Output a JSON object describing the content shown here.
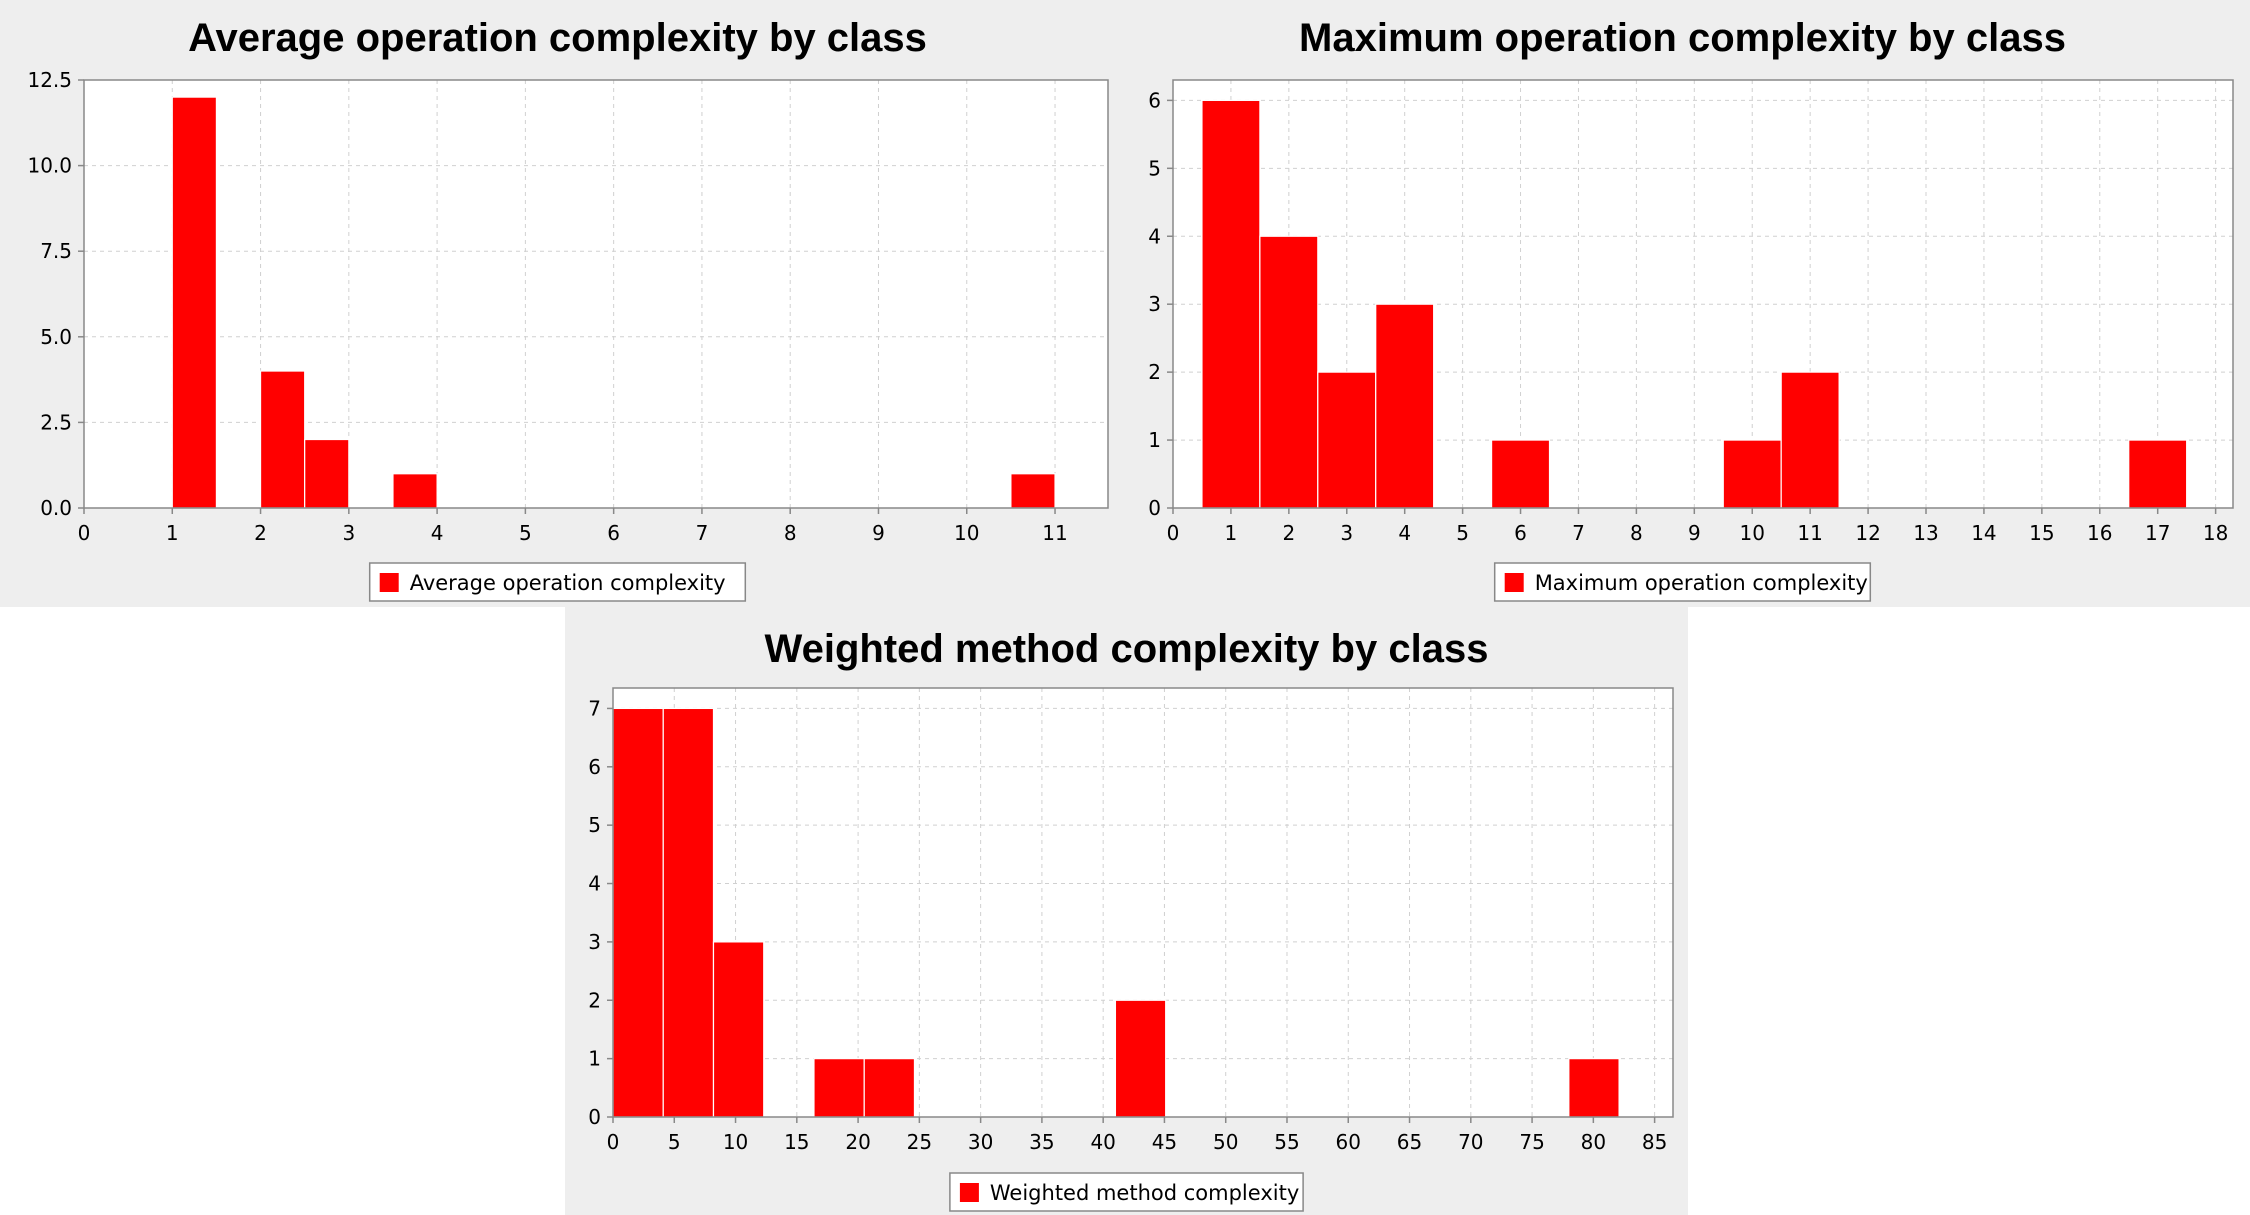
{
  "colors": {
    "bar": "#ff0000",
    "bar_edge": "#ffffff",
    "plot_bg": "#ffffff",
    "panel_bg": "#eeeeee",
    "grid": "#d0d0d0",
    "axis": "#888888"
  },
  "chart_data": [
    {
      "type": "bar",
      "title": "Average operation complexity by class",
      "legend": [
        "Average operation complexity"
      ],
      "legend_position": "bottom",
      "grid": true,
      "xlim": [
        0,
        11.6
      ],
      "ylim": [
        0,
        12.5
      ],
      "xticks": [
        0,
        1,
        2,
        3,
        4,
        5,
        6,
        7,
        8,
        9,
        10,
        11
      ],
      "yticks": [
        "0.0",
        "2.5",
        "5.0",
        "7.5",
        "10.0",
        "12.5"
      ],
      "bins": [
        {
          "start": 1.0,
          "end": 1.5,
          "count": 12
        },
        {
          "start": 2.0,
          "end": 2.5,
          "count": 4
        },
        {
          "start": 2.5,
          "end": 3.0,
          "count": 2
        },
        {
          "start": 3.5,
          "end": 4.0,
          "count": 1
        },
        {
          "start": 10.5,
          "end": 11.0,
          "count": 1
        }
      ]
    },
    {
      "type": "bar",
      "title": "Maximum operation complexity by class",
      "legend": [
        "Maximum operation complexity"
      ],
      "legend_position": "bottom",
      "grid": true,
      "xlim": [
        0,
        18.3
      ],
      "ylim": [
        0,
        6.3
      ],
      "xticks": [
        0,
        1,
        2,
        3,
        4,
        5,
        6,
        7,
        8,
        9,
        10,
        11,
        12,
        13,
        14,
        15,
        16,
        17,
        18
      ],
      "yticks": [
        "0",
        "1",
        "2",
        "3",
        "4",
        "5",
        "6"
      ],
      "bins": [
        {
          "start": 0.5,
          "end": 1.5,
          "count": 6
        },
        {
          "start": 1.5,
          "end": 2.5,
          "count": 4
        },
        {
          "start": 2.5,
          "end": 3.5,
          "count": 2
        },
        {
          "start": 3.5,
          "end": 4.5,
          "count": 3
        },
        {
          "start": 5.5,
          "end": 6.5,
          "count": 1
        },
        {
          "start": 9.5,
          "end": 10.5,
          "count": 1
        },
        {
          "start": 10.5,
          "end": 11.5,
          "count": 2
        },
        {
          "start": 16.5,
          "end": 17.5,
          "count": 1
        }
      ]
    },
    {
      "type": "bar",
      "title": "Weighted method complexity by class",
      "legend": [
        "Weighted method complexity"
      ],
      "legend_position": "bottom",
      "grid": true,
      "xlim": [
        0,
        86.5
      ],
      "ylim": [
        0,
        7.35
      ],
      "xticks": [
        0,
        5,
        10,
        15,
        20,
        25,
        30,
        35,
        40,
        45,
        50,
        55,
        60,
        65,
        70,
        75,
        80,
        85
      ],
      "yticks": [
        "0",
        "1",
        "2",
        "3",
        "4",
        "5",
        "6",
        "7"
      ],
      "bins": [
        {
          "start": 0.0,
          "end": 4.1,
          "count": 7
        },
        {
          "start": 4.1,
          "end": 8.2,
          "count": 7
        },
        {
          "start": 8.2,
          "end": 12.3,
          "count": 3
        },
        {
          "start": 16.4,
          "end": 20.5,
          "count": 1
        },
        {
          "start": 20.5,
          "end": 24.6,
          "count": 1
        },
        {
          "start": 41.0,
          "end": 45.1,
          "count": 2
        },
        {
          "start": 78.0,
          "end": 82.1,
          "count": 1
        }
      ]
    }
  ]
}
